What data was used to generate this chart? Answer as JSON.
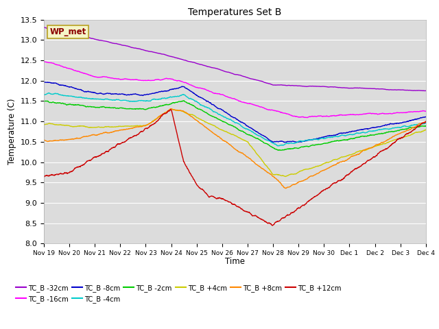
{
  "title": "Temperatures Set B",
  "xlabel": "Time",
  "ylabel": "Temperature (C)",
  "ylim": [
    8.0,
    13.5
  ],
  "yticks": [
    8.0,
    8.5,
    9.0,
    9.5,
    10.0,
    10.5,
    11.0,
    11.5,
    12.0,
    12.5,
    13.0,
    13.5
  ],
  "xtick_labels": [
    "Nov 19",
    "Nov 20",
    "Nov 21",
    "Nov 22",
    "Nov 23",
    "Nov 24",
    "Nov 25",
    "Nov 26",
    "Nov 27",
    "Nov 28",
    "Nov 29",
    "Nov 30",
    "Dec 1",
    "Dec 2",
    "Dec 3",
    "Dec 4"
  ],
  "annotation_text": "WP_met",
  "annotation_color": "#8B0000",
  "annotation_bg": "#f5f5c8",
  "annotation_border": "#b8a020",
  "series": [
    {
      "label": "TC_B -32cm",
      "color": "#9900cc"
    },
    {
      "label": "TC_B -16cm",
      "color": "#ff00ff"
    },
    {
      "label": "TC_B -8cm",
      "color": "#0000cc"
    },
    {
      "label": "TC_B -4cm",
      "color": "#00cccc"
    },
    {
      "label": "TC_B -2cm",
      "color": "#00cc00"
    },
    {
      "label": "TC_B +4cm",
      "color": "#cccc00"
    },
    {
      "label": "TC_B +8cm",
      "color": "#ff8800"
    },
    {
      "label": "TC_B +12cm",
      "color": "#cc0000"
    }
  ],
  "plot_bg": "#dcdcdc",
  "fig_bg": "#ffffff",
  "grid_color": "#ffffff",
  "linewidth": 1.0
}
